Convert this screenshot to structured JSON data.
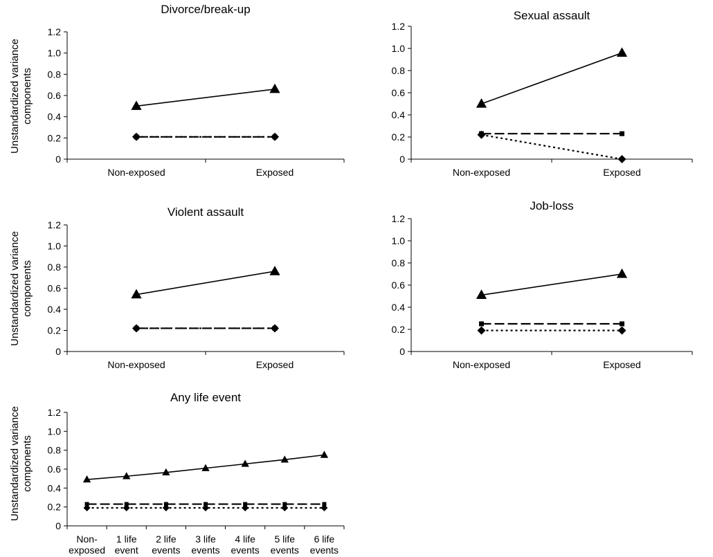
{
  "chart_data": [
    {
      "type": "line",
      "title": "Divorce/break-up",
      "ylabel": "Unstandardized variance components",
      "xlabel": "",
      "categories": [
        [
          "Non-exposed"
        ],
        [
          "Exposed"
        ]
      ],
      "ylim": [
        0,
        1.2
      ],
      "yticks": [
        "0",
        "0.2",
        "0.4",
        "0.6",
        "0.8",
        "1.0",
        "1.2"
      ],
      "grid": false,
      "series": [
        {
          "style": "solid",
          "marker": "triangle",
          "values": [
            0.5,
            0.66
          ]
        },
        {
          "style": "dashed",
          "marker": "square",
          "values": [
            0.21,
            0.21
          ]
        },
        {
          "style": "dotted",
          "marker": "diamond",
          "values": [
            0.21,
            0.21
          ]
        }
      ]
    },
    {
      "type": "line",
      "title": "Sexual assault",
      "ylabel": "",
      "xlabel": "",
      "categories": [
        [
          "Non-exposed"
        ],
        [
          "Exposed"
        ]
      ],
      "ylim": [
        0,
        1.2
      ],
      "yticks": [
        "0",
        "0.2",
        "0.4",
        "0.6",
        "0.8",
        "1.0",
        "1.2"
      ],
      "grid": false,
      "series": [
        {
          "style": "solid",
          "marker": "triangle",
          "values": [
            0.5,
            0.96
          ]
        },
        {
          "style": "dashed",
          "marker": "square",
          "values": [
            0.23,
            0.23
          ]
        },
        {
          "style": "dotted",
          "marker": "diamond",
          "values": [
            0.22,
            0.0
          ]
        }
      ]
    },
    {
      "type": "line",
      "title": "Violent assault",
      "ylabel": "Unstandardized variance components",
      "xlabel": "",
      "categories": [
        [
          "Non-exposed"
        ],
        [
          "Exposed"
        ]
      ],
      "ylim": [
        0,
        1.2
      ],
      "yticks": [
        "0",
        "0.2",
        "0.4",
        "0.6",
        "0.8",
        "1.0",
        "1.2"
      ],
      "grid": false,
      "series": [
        {
          "style": "solid",
          "marker": "triangle",
          "values": [
            0.54,
            0.76
          ]
        },
        {
          "style": "dashed",
          "marker": "square",
          "values": [
            0.22,
            0.22
          ]
        },
        {
          "style": "dotted",
          "marker": "diamond",
          "values": [
            0.22,
            0.22
          ]
        }
      ]
    },
    {
      "type": "line",
      "title": "Job-loss",
      "ylabel": "",
      "xlabel": "",
      "categories": [
        [
          "Non-exposed"
        ],
        [
          "Exposed"
        ]
      ],
      "ylim": [
        0,
        1.2
      ],
      "yticks": [
        "0",
        "0.2",
        "0.4",
        "0.6",
        "0.8",
        "1.0",
        "1.2"
      ],
      "grid": false,
      "series": [
        {
          "style": "solid",
          "marker": "triangle",
          "values": [
            0.51,
            0.7
          ]
        },
        {
          "style": "dashed",
          "marker": "square",
          "values": [
            0.25,
            0.25
          ]
        },
        {
          "style": "dotted",
          "marker": "diamond",
          "values": [
            0.19,
            0.19
          ]
        }
      ]
    },
    {
      "type": "line",
      "title": "Any life event",
      "ylabel": "Unstandardized variance components",
      "xlabel": "",
      "categories": [
        [
          "Non-",
          "exposed"
        ],
        [
          "1 life",
          "event"
        ],
        [
          "2 life",
          "events"
        ],
        [
          "3 life",
          "events"
        ],
        [
          "4 life",
          "events"
        ],
        [
          "5 life",
          "events"
        ],
        [
          "6 life",
          "events"
        ]
      ],
      "ylim": [
        0,
        1.2
      ],
      "yticks": [
        "0",
        "0.2",
        "0.4",
        "0.6",
        "0.8",
        "1.0",
        "1.2"
      ],
      "grid": false,
      "series": [
        {
          "style": "solid",
          "marker": "triangle",
          "values": [
            0.49,
            0.525,
            0.565,
            0.61,
            0.655,
            0.7,
            0.75
          ]
        },
        {
          "style": "dashed",
          "marker": "square",
          "values": [
            0.23,
            0.23,
            0.23,
            0.23,
            0.23,
            0.23,
            0.23
          ]
        },
        {
          "style": "dotted",
          "marker": "diamond",
          "values": [
            0.19,
            0.19,
            0.19,
            0.19,
            0.19,
            0.19,
            0.19
          ]
        }
      ]
    }
  ]
}
